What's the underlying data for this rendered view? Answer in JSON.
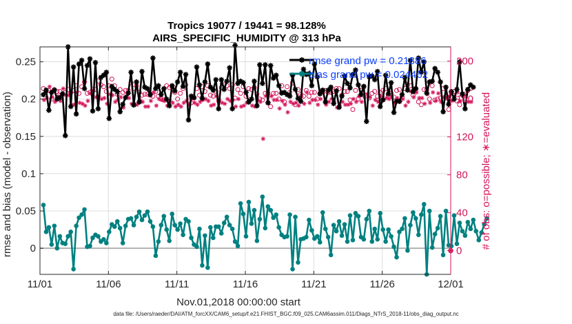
{
  "chart_data": {
    "type": "line",
    "title_line1": "Tropics 19077 / 19441 = 98.128%",
    "title_line2": "AIRS_SPECIFIC_HUMIDITY @ 313 hPa",
    "xlabel": "Nov.01,2018 00:00:00 start",
    "ylabel_left": "rmse and bias (model - observation)",
    "ylabel_right": "# of obs: o=possible; ∗=evaluated",
    "x_ticks": [
      "11/01",
      "11/06",
      "11/11",
      "11/16",
      "11/21",
      "11/26",
      "12/01"
    ],
    "x_range_days": [
      0,
      30
    ],
    "ylim_left": [
      -0.035,
      0.27
    ],
    "y_ticks_left": [
      "0",
      "0.05",
      "0.1",
      "0.15",
      "0.2",
      "0.25"
    ],
    "ylim_right": [
      -25.0,
      215.0
    ],
    "y_ticks_right": [
      "0",
      "40",
      "80",
      "120",
      "160",
      "200"
    ],
    "legend": {
      "placement": "top-right",
      "rmse_text": "rmse grand pw = 0.21886",
      "bias_text": "bias grand pw = 0.024462"
    },
    "colors": {
      "rmse": "#000000",
      "bias": "#008080",
      "obs": "#d4145a",
      "zero_line": "#b0b0b0",
      "legend_text": "#0b3fff",
      "grid": "#dcdcdc"
    },
    "series": [
      {
        "name": "rmse",
        "values": [
          0.206,
          0.212,
          0.185,
          0.209,
          0.212,
          0.2,
          0.202,
          0.207,
          0.151,
          0.27,
          0.19,
          0.243,
          0.18,
          0.247,
          0.252,
          0.214,
          0.245,
          0.254,
          0.184,
          0.249,
          0.187,
          0.229,
          0.232,
          0.236,
          0.174,
          0.217,
          0.213,
          0.21,
          0.183,
          0.193,
          0.202,
          0.208,
          0.236,
          0.192,
          0.223,
          0.196,
          0.237,
          0.216,
          0.214,
          0.206,
          0.255,
          0.214,
          0.218,
          0.206,
          0.214,
          0.2,
          0.191,
          0.218,
          0.211,
          0.223,
          0.236,
          0.217,
          0.233,
          0.172,
          0.204,
          0.202,
          0.243,
          0.219,
          0.201,
          0.223,
          0.247,
          0.216,
          0.212,
          0.226,
          0.187,
          0.226,
          0.213,
          0.224,
          0.242,
          0.187,
          0.272,
          0.221,
          0.224,
          0.222,
          0.209,
          0.196,
          0.2,
          0.224,
          0.191,
          0.246,
          0.221,
          0.246,
          0.195,
          0.245,
          0.228,
          0.232,
          0.218,
          0.208,
          0.209,
          0.206,
          0.204,
          0.232,
          0.213,
          0.201,
          0.197,
          0.24,
          0.233,
          0.234,
          0.218,
          0.247,
          0.23,
          0.207,
          0.212,
          0.196,
          0.212,
          0.216,
          0.194,
          0.211,
          0.189,
          0.204,
          0.231,
          0.221,
          0.215,
          0.233,
          0.239,
          0.219,
          0.206,
          0.217,
          0.17,
          0.23,
          0.231,
          0.226,
          0.237,
          0.19,
          0.199,
          0.232,
          0.207,
          0.222,
          0.182,
          0.197,
          0.197,
          0.206,
          0.229,
          0.212,
          0.252,
          0.21,
          0.214,
          0.255,
          0.236,
          0.25,
          0.208,
          0.223,
          0.224,
          0.241,
          0.236,
          0.223,
          0.183,
          0.216,
          0.193,
          0.21,
          0.2,
          0.213,
          0.25,
          0.207,
          0.187,
          0.213,
          0.219,
          0.216
        ]
      },
      {
        "name": "bias",
        "values": [
          0.058,
          0.022,
          0.028,
          0.005,
          0.03,
          0.0,
          0.016,
          0.007,
          0.006,
          0.016,
          0.022,
          -0.028,
          0.03,
          0.041,
          0.045,
          0.052,
          0.002,
          0.003,
          0.014,
          0.018,
          0.016,
          0.009,
          0.012,
          0.007,
          0.022,
          0.032,
          0.029,
          0.036,
          0.027,
          0.007,
          0.03,
          0.039,
          0.04,
          0.031,
          0.042,
          0.049,
          0.038,
          0.044,
          0.049,
          0.036,
          0.029,
          -0.01,
          0.009,
          0.031,
          0.043,
          0.025,
          0.01,
          0.046,
          0.031,
          0.025,
          0.033,
          0.018,
          0.039,
          0.036,
          0.014,
          0.005,
          0.002,
          0.026,
          -0.023,
          0.017,
          -0.026,
          0.028,
          0.014,
          0.029,
          0.029,
          0.02,
          0.034,
          0.042,
          0.031,
          0.026,
          0.009,
          0.003,
          0.06,
          0.046,
          0.016,
          0.062,
          0.033,
          0.051,
          0.01,
          0.039,
          0.069,
          0.027,
          0.056,
          0.051,
          0.041,
          0.045,
          0.028,
          0.018,
          0.015,
          0.016,
          0.045,
          -0.028,
          0.042,
          -0.019,
          0.012,
          0.013,
          0.015,
          0.038,
          0.024,
          0.013,
          0.016,
          0.008,
          0.048,
          0.026,
          0.015,
          -0.009,
          0.031,
          0.023,
          0.036,
          0.017,
          0.032,
          0.009,
          0.044,
          0.011,
          0.047,
          0.043,
          0.015,
          0.012,
          0.039,
          0.05,
          0.009,
          0.026,
          0.012,
          0.047,
          0.025,
          0.009,
          0.025,
          0.016,
          0.002,
          -0.012,
          0.022,
          0.026,
          0.04,
          -0.003,
          0.031,
          0.048,
          0.04,
          0.018,
          0.045,
          0.059,
          -0.035,
          0.05,
          0.001,
          0.019,
          0.027,
          0.043,
          -0.009,
          0.05,
          0.004,
          0.003,
          0.044,
          0.006,
          0.034,
          0.023,
          0.017,
          0.035,
          0.026,
          0.038,
          0.023,
          0.011,
          0.021,
          0.032,
          0.04
        ]
      },
      {
        "name": "obs_possible",
        "values": [
          171,
          168,
          169,
          160,
          170,
          168,
          168,
          165,
          167,
          170,
          167,
          169,
          174,
          166,
          173,
          178,
          166,
          167,
          170,
          170,
          179,
          175,
          173,
          168,
          174,
          181,
          174,
          165,
          170,
          167,
          169,
          169,
          177,
          171,
          174,
          167,
          164,
          165,
          165,
          164,
          163,
          168,
          163,
          160,
          159,
          174,
          172,
          173,
          167,
          160,
          166,
          171,
          175,
          158,
          156,
          161,
          171,
          164,
          173,
          168,
          174,
          164,
          163,
          168,
          158,
          172,
          175,
          174,
          171,
          175,
          161,
          170,
          166,
          173,
          163,
          171,
          170,
          172,
          165,
          160,
          159,
          166,
          166,
          152,
          166,
          166,
          160,
          174,
          157,
          173,
          167,
          177,
          154,
          170,
          165,
          163,
          169,
          163,
          167,
          167,
          160,
          166,
          169,
          169,
          167,
          167,
          168,
          171,
          171,
          164,
          168,
          168,
          159,
          149,
          169,
          160,
          169,
          173,
          164,
          161,
          166,
          168,
          163,
          167,
          169,
          171,
          164,
          166,
          162,
          169,
          170,
          162,
          171,
          175,
          174,
          164,
          171,
          157,
          154,
          170,
          170,
          160,
          174,
          159,
          160,
          161,
          171,
          161,
          149,
          167,
          168,
          158,
          154,
          164,
          165,
          169,
          171
        ]
      },
      {
        "name": "obs_evaluated",
        "values": [
          159,
          161,
          173,
          162,
          157,
          163,
          158,
          171,
          164,
          164,
          154,
          154,
          167,
          156,
          155,
          153,
          158,
          166,
          169,
          162,
          163,
          160,
          161,
          155,
          165,
          164,
          157,
          159,
          162,
          151,
          163,
          161,
          155,
          155,
          154,
          159,
          157,
          152,
          152,
          158,
          167,
          153,
          160,
          159,
          158,
          153,
          158,
          156,
          152,
          154,
          152,
          156,
          158,
          154,
          161,
          156,
          154,
          157,
          159,
          160,
          158,
          153,
          154,
          163,
          159,
          156,
          155,
          160,
          158,
          159,
          152,
          160,
          152,
          153,
          156,
          158,
          153,
          152,
          159,
          157,
          118,
          163,
          156,
          163,
          159,
          159,
          150,
          158,
          154,
          146,
          157,
          155,
          156,
          153,
          163,
          155,
          167,
          156,
          159,
          159,
          154,
          160,
          167,
          154,
          157,
          160,
          157,
          151,
          153,
          157,
          154,
          154,
          155,
          160,
          157,
          163,
          157,
          162,
          165,
          162,
          153,
          159,
          157,
          163,
          159,
          161,
          160,
          162,
          156,
          161,
          157,
          160,
          153,
          157,
          168,
          162,
          167,
          161,
          161,
          155,
          165,
          156,
          167,
          158,
          166,
          157,
          162,
          161,
          163,
          158,
          163,
          167,
          158,
          163,
          164,
          157,
          157
        ]
      }
    ],
    "right_axis_marker_value": 0,
    "footer": "data file: /Users/raeder/DAI/ATM_forcXX/CAM6_setup/f.e21.FHIST_BGC.f09_025.CAM6assim.011/Diags_NTrS_2018-11/obs_diag_output.nc"
  }
}
